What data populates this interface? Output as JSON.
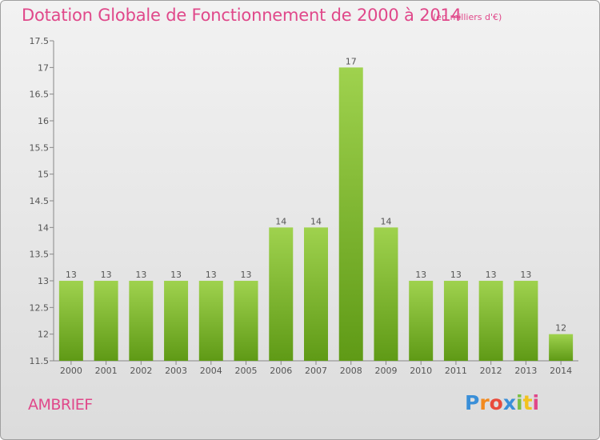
{
  "chart_data": {
    "type": "bar",
    "title": "Dotation Globale de Fonctionnement de 2000 à 2014",
    "subtitle": "(en milliers d'€)",
    "categories": [
      "2000",
      "2001",
      "2002",
      "2003",
      "2004",
      "2005",
      "2006",
      "2007",
      "2008",
      "2009",
      "2010",
      "2011",
      "2012",
      "2013",
      "2014"
    ],
    "values": [
      13,
      13,
      13,
      13,
      13,
      13,
      14,
      14,
      17,
      14,
      13,
      13,
      13,
      13,
      12
    ],
    "ylim": [
      11.5,
      17.5
    ],
    "yticks": [
      "11.5",
      "12",
      "12.5",
      "13",
      "13.5",
      "14",
      "14.5",
      "15",
      "15.5",
      "16",
      "16.5",
      "17",
      "17.5"
    ],
    "xlabel": "",
    "ylabel": "",
    "grid": false,
    "colors": {
      "bar_top": "#9fd24e",
      "bar_bottom": "#5f9a16",
      "text_accent": "#e0488a"
    }
  },
  "commune": "AMBRIEF",
  "logo": {
    "letters": [
      "P",
      "r",
      "o",
      "x",
      "i",
      "t",
      "i"
    ],
    "colors": [
      "#3a8fd8",
      "#f28a1e",
      "#e94b3c",
      "#3a8fd8",
      "#7bc043",
      "#f2c21e",
      "#e0488a"
    ]
  }
}
